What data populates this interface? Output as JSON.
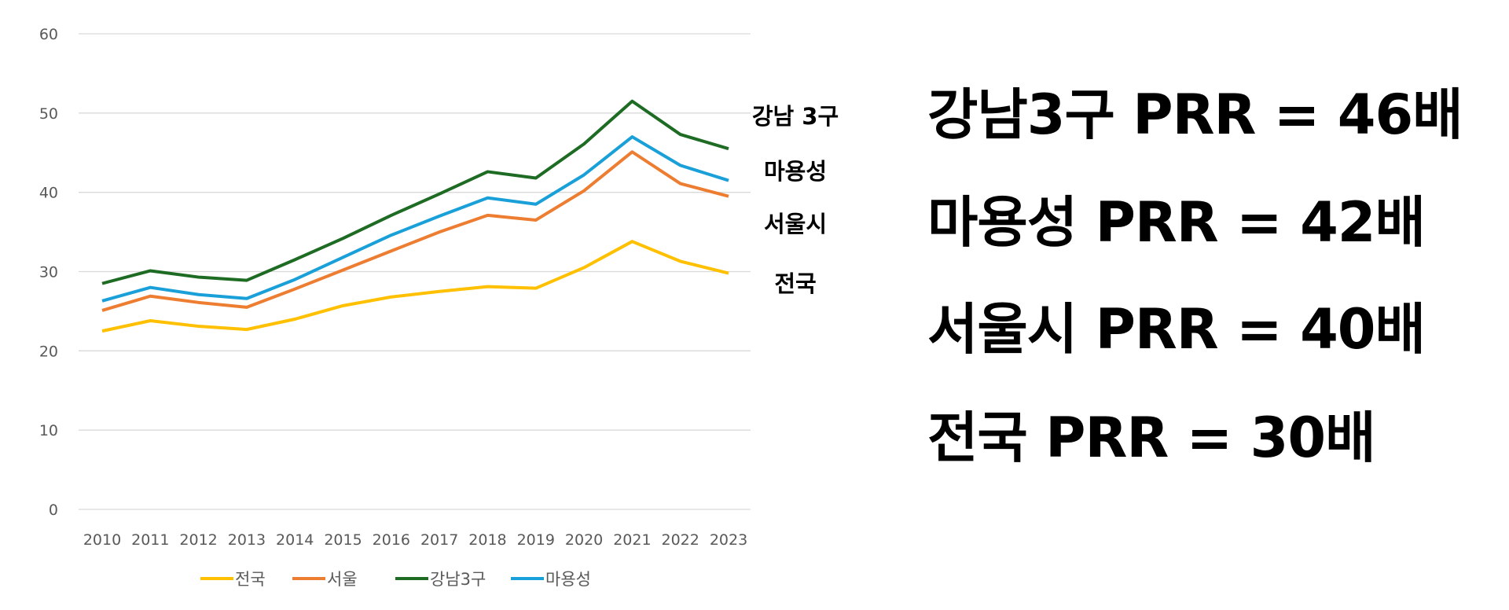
{
  "chart_data": {
    "type": "line",
    "categories": [
      "2010",
      "2011",
      "2012",
      "2013",
      "2014",
      "2015",
      "2016",
      "2017",
      "2018",
      "2019",
      "2020",
      "2021",
      "2022",
      "2023"
    ],
    "ylim": [
      0,
      60
    ],
    "yticks": [
      0,
      10,
      20,
      30,
      40,
      50,
      60
    ],
    "grid": true,
    "legend_position": "bottom",
    "series": [
      {
        "name": "전국",
        "color": "#FFC000",
        "values": [
          22.5,
          23.8,
          23.1,
          22.7,
          24.0,
          25.7,
          26.8,
          27.5,
          28.1,
          27.9,
          30.5,
          33.8,
          31.3,
          29.8
        ]
      },
      {
        "name": "서울",
        "color": "#ED7D31",
        "values": [
          25.1,
          26.9,
          26.1,
          25.5,
          27.8,
          30.2,
          32.6,
          35.0,
          37.1,
          36.5,
          40.2,
          45.1,
          41.1,
          39.5
        ]
      },
      {
        "name": "강남3구",
        "color": "#1E6B24",
        "values": [
          28.5,
          30.1,
          29.3,
          28.9,
          31.5,
          34.2,
          37.1,
          39.8,
          42.6,
          41.8,
          46.1,
          51.5,
          47.3,
          45.5
        ]
      },
      {
        "name": "마용성",
        "color": "#1AA0D8",
        "values": [
          26.3,
          28.0,
          27.1,
          26.6,
          29.0,
          31.8,
          34.6,
          37.0,
          39.3,
          38.5,
          42.2,
          47.0,
          43.4,
          41.5
        ]
      }
    ],
    "annotations": [
      "강남 3구",
      "마용성",
      "서울시",
      "전국"
    ]
  },
  "summary": [
    "강남3구 PRR = 46배",
    "마용성 PRR = 42배",
    "서울시 PRR = 40배",
    "전국 PRR = 30배"
  ]
}
